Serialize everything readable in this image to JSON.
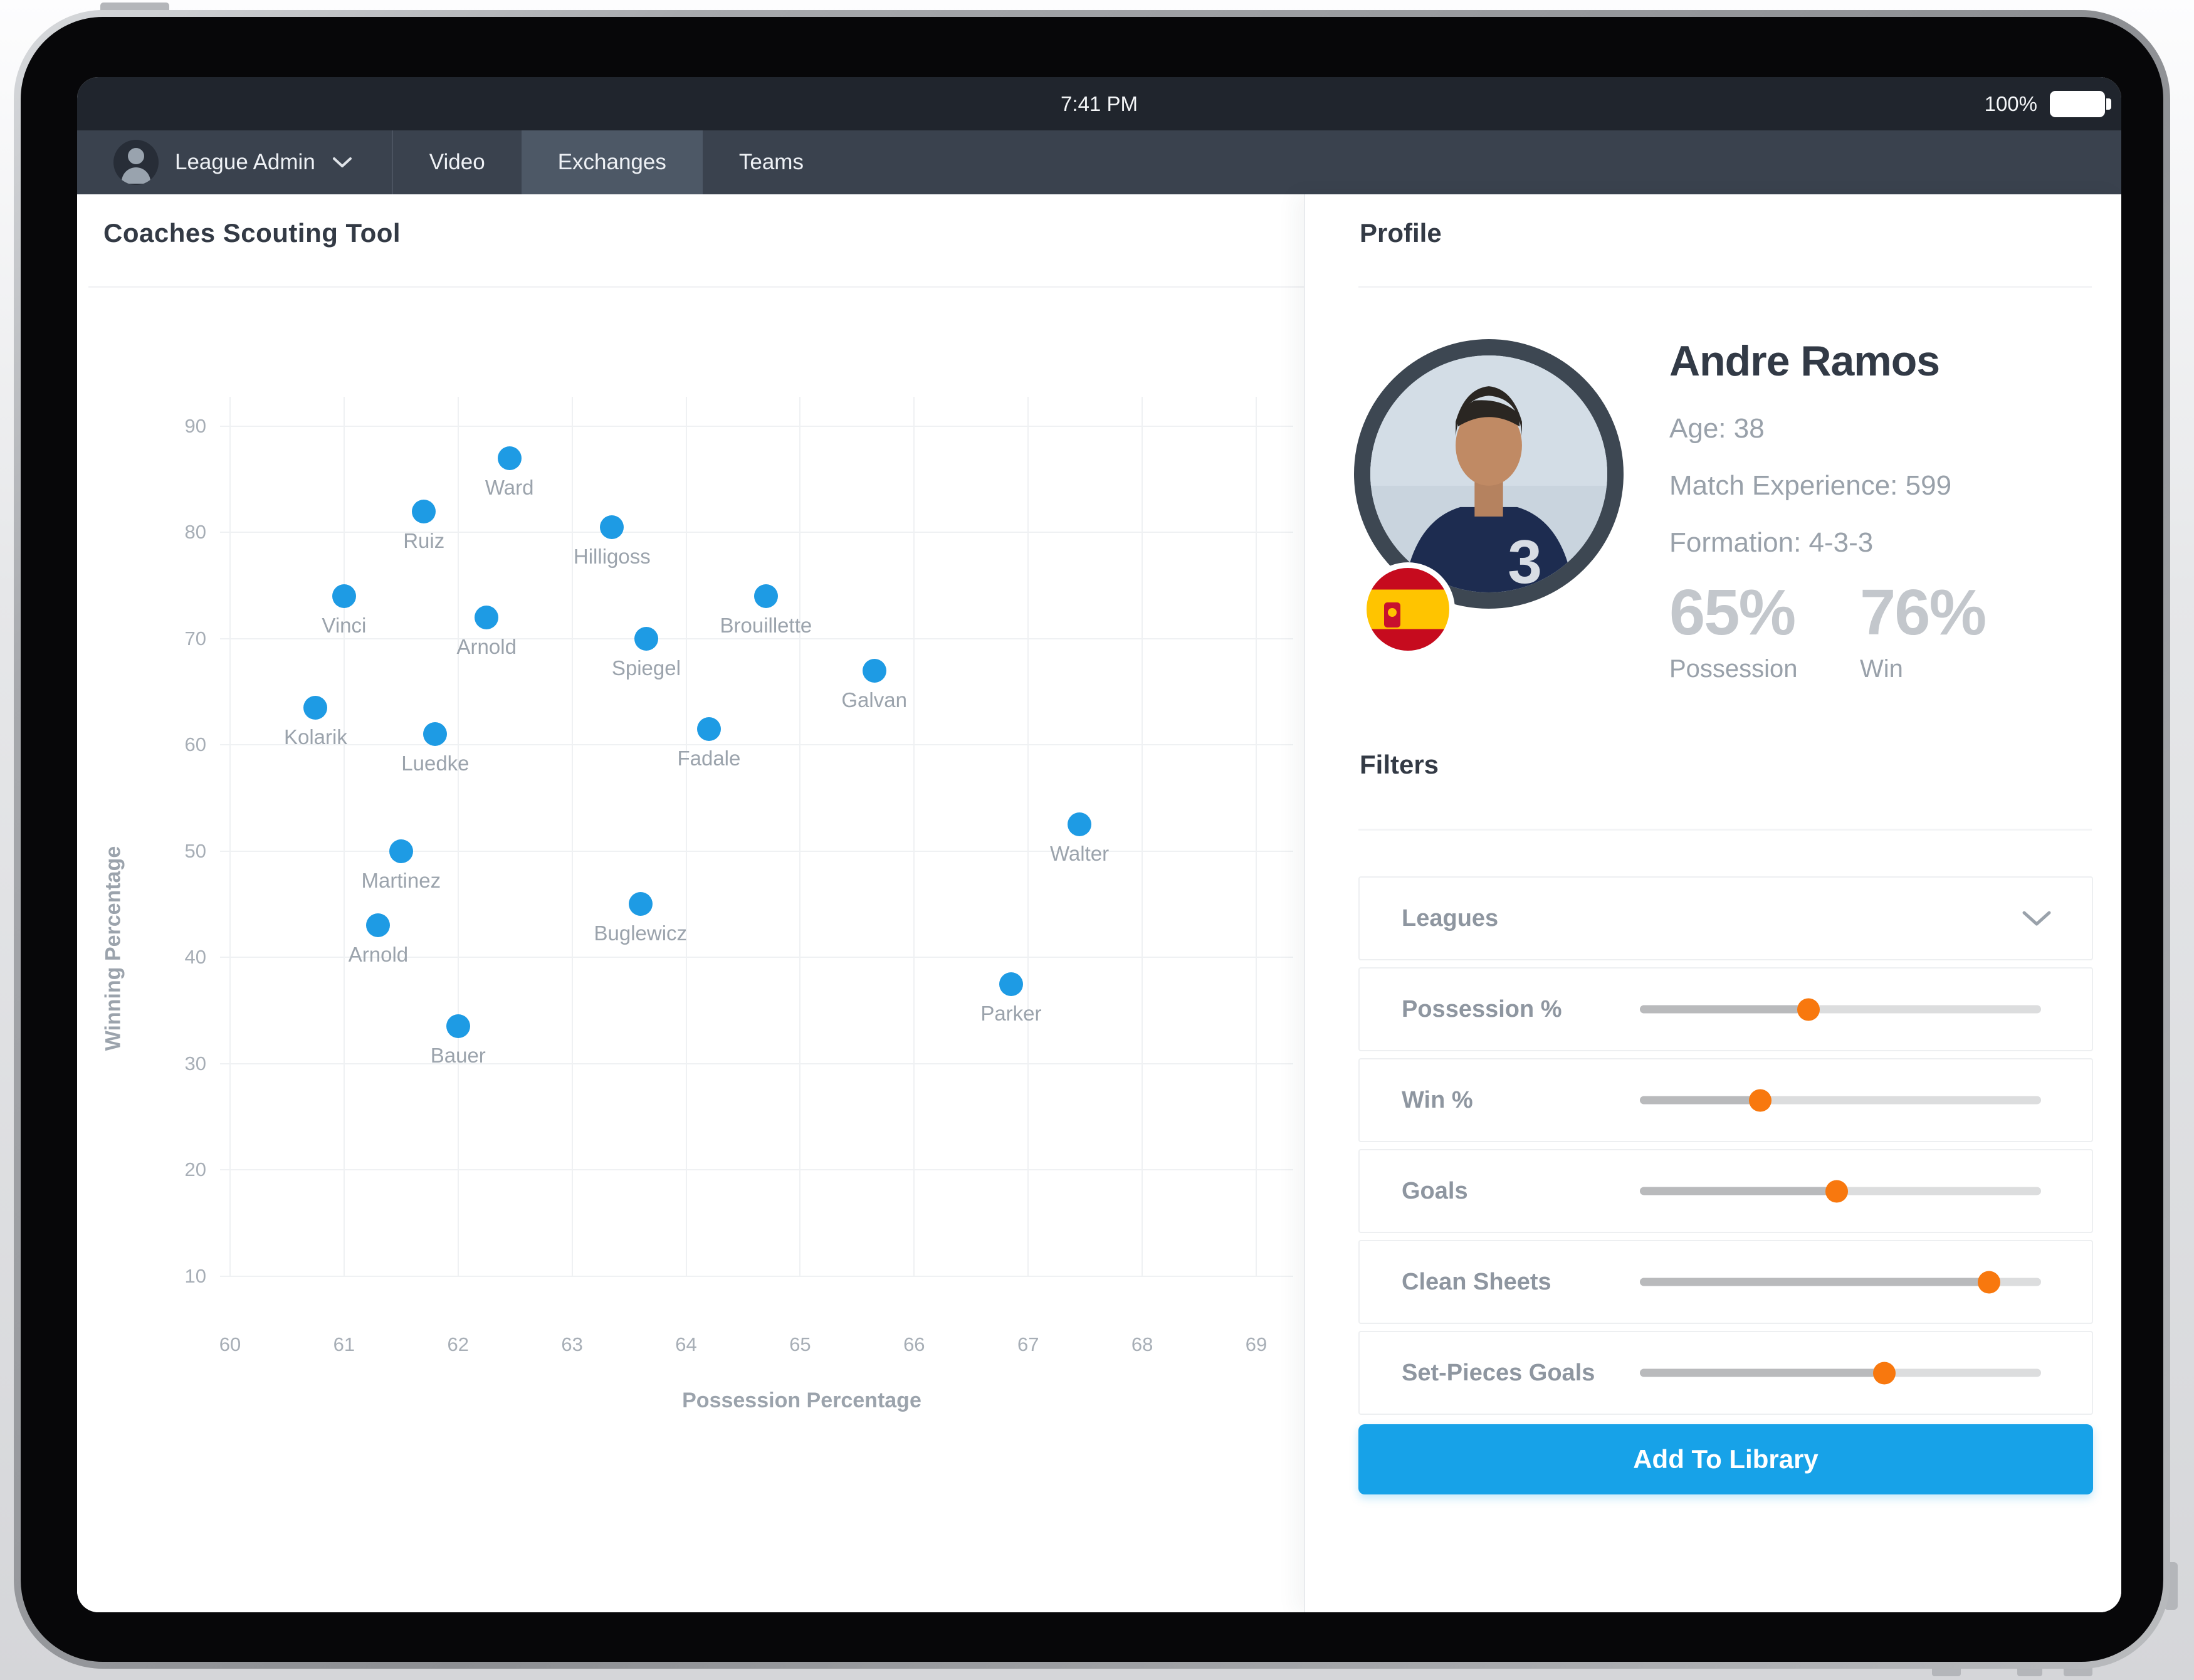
{
  "status_bar": {
    "time": "7:41 PM",
    "battery": "100%"
  },
  "nav": {
    "user_label": "League Admin",
    "tabs": [
      {
        "label": "Video",
        "active": false
      },
      {
        "label": "Exchanges",
        "active": true
      },
      {
        "label": "Teams",
        "active": false
      }
    ]
  },
  "chart_data": {
    "type": "scatter",
    "title": "Coaches Scouting Tool",
    "xlabel": "Possession Percentage",
    "ylabel": "Winning Percentage",
    "xlim": [
      60,
      69
    ],
    "ylim": [
      10,
      90
    ],
    "x_ticks": [
      60,
      61,
      62,
      63,
      64,
      65,
      66,
      67,
      68,
      69
    ],
    "y_ticks": [
      90,
      80,
      70,
      60,
      50,
      40,
      30,
      20,
      10
    ],
    "grid": true,
    "points": [
      {
        "label": "Ward",
        "x": 62.45,
        "y": 87
      },
      {
        "label": "Ruiz",
        "x": 61.7,
        "y": 82
      },
      {
        "label": "Hilligoss",
        "x": 63.35,
        "y": 80.5
      },
      {
        "label": "Vinci",
        "x": 61.0,
        "y": 74
      },
      {
        "label": "Brouillette",
        "x": 64.7,
        "y": 74
      },
      {
        "label": "Arnold",
        "x": 62.25,
        "y": 72
      },
      {
        "label": "Spiegel",
        "x": 63.65,
        "y": 70
      },
      {
        "label": "Galvan",
        "x": 65.65,
        "y": 67
      },
      {
        "label": "Kolarik",
        "x": 60.75,
        "y": 63.5
      },
      {
        "label": "Luedke",
        "x": 61.8,
        "y": 61
      },
      {
        "label": "Fadale",
        "x": 64.2,
        "y": 61.5
      },
      {
        "label": "Walter",
        "x": 67.45,
        "y": 52.5
      },
      {
        "label": "Martinez",
        "x": 61.5,
        "y": 50
      },
      {
        "label": "Buglewicz",
        "x": 63.6,
        "y": 45
      },
      {
        "label": "Arnold",
        "x": 61.3,
        "y": 43
      },
      {
        "label": "Parker",
        "x": 66.85,
        "y": 37.5
      },
      {
        "label": "Bauer",
        "x": 62.0,
        "y": 33.5
      }
    ]
  },
  "profile": {
    "heading": "Profile",
    "name": "Andre Ramos",
    "details": [
      "Age: 38",
      "Match Experience: 599",
      "Formation: 4-3-3"
    ],
    "stats": [
      {
        "value": "65%",
        "label": "Possession"
      },
      {
        "value": "76%",
        "label": "Win"
      }
    ],
    "flag": "spain-flag"
  },
  "filters": {
    "heading": "Filters",
    "dropdown_label": "Leagues",
    "sliders": [
      {
        "label": "Possession %",
        "position_pct": 42
      },
      {
        "label": "Win %",
        "position_pct": 30
      },
      {
        "label": "Goals",
        "position_pct": 49
      },
      {
        "label": "Clean Sheets",
        "position_pct": 87
      },
      {
        "label": "Set-Pieces Goals",
        "position_pct": 61
      }
    ]
  },
  "actions": {
    "add_to_library": "Add To Library"
  },
  "colors": {
    "accent_blue": "#1e9be4",
    "accent_orange": "#f8780e",
    "button_blue": "#17a2e8",
    "nav_dark": "#3a424e",
    "status_dark": "#20252d"
  }
}
